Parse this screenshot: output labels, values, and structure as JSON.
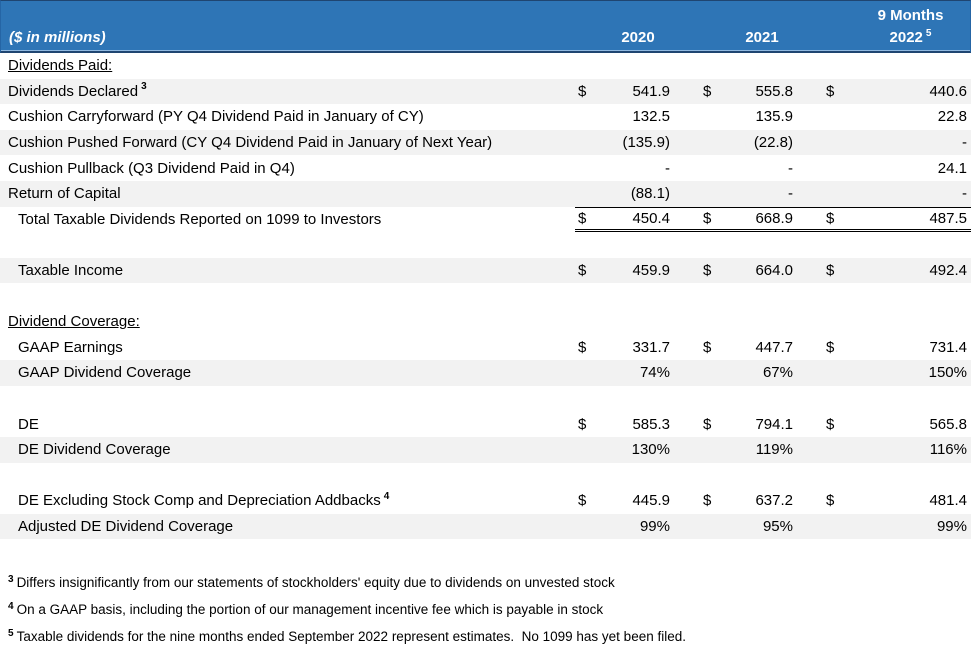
{
  "colors": {
    "header_bg": "#2E75B6",
    "header_text": "#FFFFFF",
    "header_rule": "#1F4571",
    "row_stripe": "#F2F2F2",
    "text": "#000000",
    "total_border": "#000000"
  },
  "header": {
    "units_label": "($ in millions)",
    "periods": [
      {
        "label": "2020"
      },
      {
        "label": "2021"
      },
      {
        "line1": "9 Months",
        "label": "2022",
        "sup": "5"
      }
    ]
  },
  "table": {
    "rows": [
      {
        "type": "section",
        "label": "Dividends Paid:"
      },
      {
        "type": "data",
        "label": "Dividends Declared",
        "sup": "3",
        "cur": "$",
        "shade": true,
        "values": [
          "541.9",
          "555.8",
          "440.6"
        ]
      },
      {
        "type": "data",
        "label": "Cushion Carryforward (PY Q4 Dividend Paid in January of CY)",
        "values": [
          "132.5",
          "135.9",
          "22.8"
        ]
      },
      {
        "type": "data",
        "label": "Cushion Pushed Forward (CY Q4 Dividend Paid in January of Next Year)",
        "shade": true,
        "values": [
          "(135.9)",
          "(22.8)",
          "-"
        ]
      },
      {
        "type": "data",
        "label": "Cushion Pullback (Q3 Dividend Paid in Q4)",
        "values": [
          "-",
          "-",
          "24.1"
        ]
      },
      {
        "type": "data",
        "label": "Return of Capital",
        "shade": true,
        "values": [
          "(88.1)",
          "-",
          "-"
        ]
      },
      {
        "type": "data",
        "label": "Total Taxable Dividends Reported on 1099 to Investors",
        "indent": true,
        "cur": "$",
        "total": true,
        "values": [
          "450.4",
          "668.9",
          "487.5"
        ]
      },
      {
        "type": "blank"
      },
      {
        "type": "data",
        "label": "Taxable Income",
        "indent": true,
        "cur": "$",
        "shade": true,
        "values": [
          "459.9",
          "664.0",
          "492.4"
        ]
      },
      {
        "type": "blank"
      },
      {
        "type": "section",
        "label": "Dividend Coverage:"
      },
      {
        "type": "data",
        "label": "GAAP Earnings",
        "indent": true,
        "cur": "$",
        "values": [
          "331.7",
          "447.7",
          "731.4"
        ]
      },
      {
        "type": "data",
        "label": "GAAP Dividend Coverage",
        "indent": true,
        "shade": true,
        "values": [
          "74%",
          "67%",
          "150%"
        ]
      },
      {
        "type": "blank"
      },
      {
        "type": "data",
        "label": "DE",
        "indent": true,
        "cur": "$",
        "values": [
          "585.3",
          "794.1",
          "565.8"
        ]
      },
      {
        "type": "data",
        "label": "DE Dividend Coverage",
        "indent": true,
        "shade": true,
        "values": [
          "130%",
          "119%",
          "116%"
        ]
      },
      {
        "type": "blank"
      },
      {
        "type": "data",
        "label": "DE Excluding Stock Comp and Depreciation Addbacks",
        "sup": "4",
        "indent": true,
        "cur": "$",
        "values": [
          "445.9",
          "637.2",
          "481.4"
        ]
      },
      {
        "type": "data",
        "label": "Adjusted DE Dividend Coverage",
        "indent": true,
        "shade": true,
        "values": [
          "99%",
          "95%",
          "99%"
        ]
      }
    ]
  },
  "footnotes": [
    {
      "marker": "3",
      "text": "Differs insignificantly from our statements of stockholders' equity due to dividends on unvested stock"
    },
    {
      "marker": "4",
      "text": "On a GAAP basis, including the portion of our management incentive fee which is payable in stock"
    },
    {
      "marker": "5",
      "text": "Taxable dividends for the nine months ended September 2022 represent estimates.  No 1099 has yet been filed."
    }
  ]
}
